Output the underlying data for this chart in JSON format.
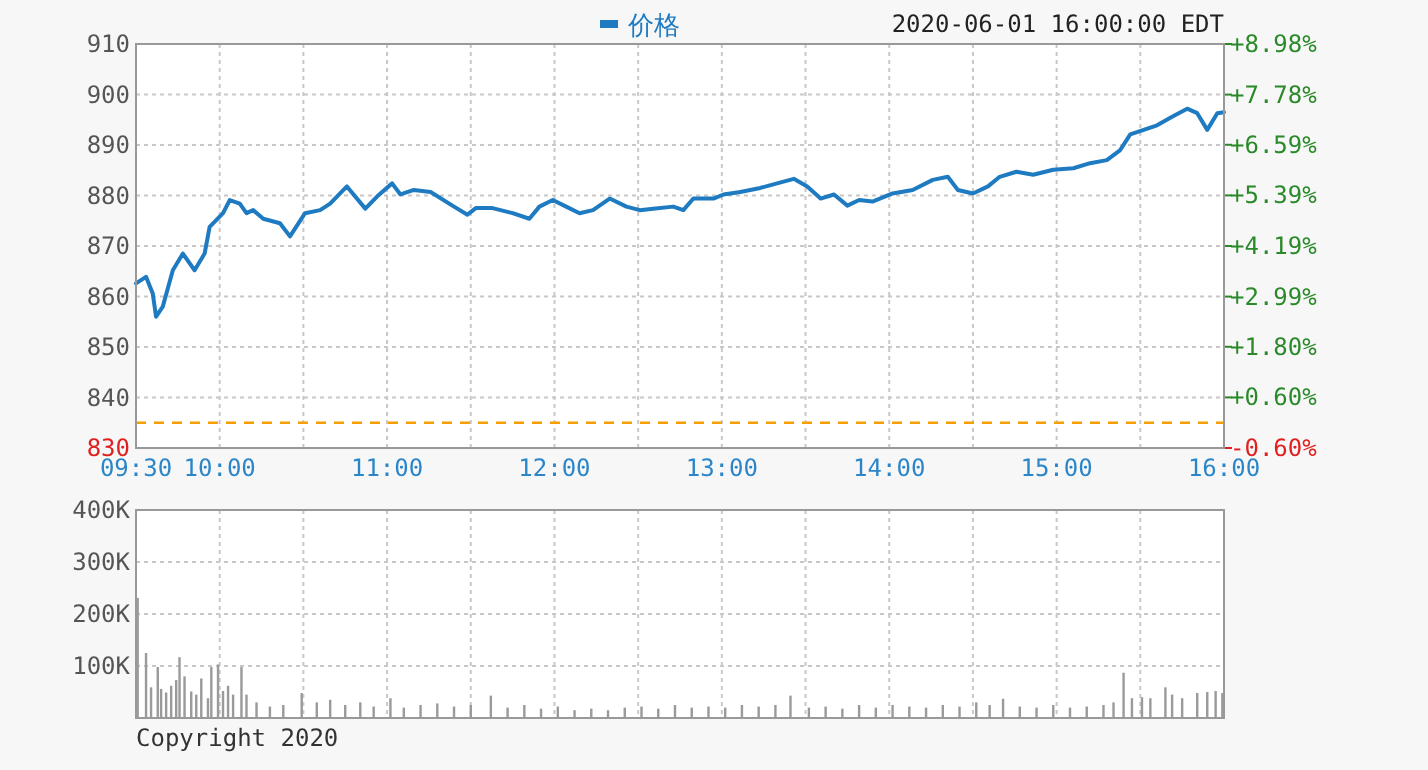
{
  "chart_data": [
    {
      "type": "line",
      "subtitle": "2020-06-01 16:00:00 EDT",
      "legend": "top",
      "grid": true,
      "xlim": [
        9.5,
        16
      ],
      "xticks": [
        {
          "value": 9.5,
          "label": "09:30"
        },
        {
          "value": 10,
          "label": "10:00"
        },
        {
          "value": 10.5,
          "label": null
        },
        {
          "value": 11,
          "label": "11:00"
        },
        {
          "value": 11.5,
          "label": null
        },
        {
          "value": 12,
          "label": "12:00"
        },
        {
          "value": 12.5,
          "label": null
        },
        {
          "value": 13,
          "label": "13:00"
        },
        {
          "value": 13.5,
          "label": null
        },
        {
          "value": 14,
          "label": "14:00"
        },
        {
          "value": 14.5,
          "label": null
        },
        {
          "value": 15,
          "label": "15:00"
        },
        {
          "value": 15.5,
          "label": null
        },
        {
          "value": 16,
          "label": "16:00"
        }
      ],
      "ylim": [
        830,
        910
      ],
      "yticks": [
        830,
        840,
        850,
        860,
        870,
        880,
        890,
        900,
        910
      ],
      "y2lim": [
        -0.6,
        8.98
      ],
      "y2ticks": [
        {
          "value": -0.6,
          "label": "-0.60%"
        },
        {
          "value": 0.6,
          "label": "+0.60%"
        },
        {
          "value": 1.8,
          "label": "+1.80%"
        },
        {
          "value": 2.99,
          "label": "+2.99%"
        },
        {
          "value": 4.19,
          "label": "+4.19%"
        },
        {
          "value": 5.39,
          "label": "+5.39%"
        },
        {
          "value": 6.59,
          "label": "+6.59%"
        },
        {
          "value": 7.78,
          "label": "+7.78%"
        },
        {
          "value": 8.98,
          "label": "+8.98%"
        }
      ],
      "ref_lines": [
        {
          "axis": "y",
          "value": 835,
          "label": null,
          "color": "#f5a000",
          "line_style": "dashed"
        }
      ],
      "series": [
        {
          "name": "价格",
          "color": "#1f7bc1",
          "x": [
            9.5,
            9.56,
            9.6,
            9.62,
            9.66,
            9.72,
            9.78,
            9.85,
            9.91,
            9.94,
            10.02,
            10.06,
            10.12,
            10.16,
            10.2,
            10.26,
            10.36,
            10.42,
            10.51,
            10.6,
            10.66,
            10.76,
            10.87,
            10.94,
            11.03,
            11.08,
            11.16,
            11.26,
            11.4,
            11.48,
            11.53,
            11.63,
            11.75,
            11.85,
            11.91,
            11.99,
            12.07,
            12.15,
            12.23,
            12.33,
            12.43,
            12.51,
            12.59,
            12.71,
            12.77,
            12.83,
            12.95,
            13.01,
            13.11,
            13.23,
            13.33,
            13.43,
            13.51,
            13.59,
            13.67,
            13.75,
            13.82,
            13.9,
            14.02,
            14.14,
            14.26,
            14.35,
            14.41,
            14.5,
            14.59,
            14.66,
            14.76,
            14.86,
            14.98,
            15.1,
            15.2,
            15.3,
            15.38,
            15.44,
            15.52,
            15.6,
            15.69,
            15.78,
            15.84,
            15.9,
            15.96,
            16.0
          ],
          "values": [
            862.6,
            863.9,
            860.6,
            856.0,
            858.0,
            865.2,
            868.5,
            865.2,
            868.5,
            873.8,
            876.5,
            879.1,
            878.4,
            876.5,
            877.1,
            875.4,
            874.5,
            871.9,
            876.5,
            877.1,
            878.4,
            881.8,
            877.4,
            879.8,
            882.4,
            880.2,
            881.1,
            880.7,
            877.8,
            876.2,
            877.5,
            877.5,
            876.5,
            875.4,
            877.8,
            879.1,
            877.8,
            876.5,
            877.1,
            879.4,
            877.8,
            877.1,
            877.4,
            877.8,
            877.1,
            879.4,
            879.4,
            880.2,
            880.7,
            881.5,
            882.4,
            883.3,
            881.8,
            879.4,
            880.2,
            878.0,
            879.1,
            878.8,
            880.4,
            881.1,
            883.1,
            883.7,
            881.1,
            880.4,
            881.8,
            883.7,
            884.7,
            884.1,
            885.1,
            885.4,
            886.4,
            887.0,
            889.0,
            892.1,
            893.0,
            893.9,
            895.6,
            897.2,
            896.3,
            893.0,
            896.3,
            896.5
          ]
        }
      ]
    },
    {
      "type": "bar",
      "grid": true,
      "tick_labels": "y",
      "annotations": [
        "Copyright 2020"
      ],
      "xlim": [
        9.5,
        16
      ],
      "xticks": [
        {
          "value": 9.5,
          "label": null
        },
        {
          "value": 10,
          "label": null
        },
        {
          "value": 10.5,
          "label": null
        },
        {
          "value": 11,
          "label": null
        },
        {
          "value": 11.5,
          "label": null
        },
        {
          "value": 12,
          "label": null
        },
        {
          "value": 12.5,
          "label": null
        },
        {
          "value": 13,
          "label": null
        },
        {
          "value": 13.5,
          "label": null
        },
        {
          "value": 14,
          "label": null
        },
        {
          "value": 14.5,
          "label": null
        },
        {
          "value": 15,
          "label": null
        },
        {
          "value": 15.5,
          "label": null
        },
        {
          "value": 16,
          "label": null
        }
      ],
      "ylim": [
        0,
        400000
      ],
      "yticks": [
        {
          "value": 100000,
          "label": "100K"
        },
        {
          "value": 200000,
          "label": "200K"
        },
        {
          "value": 300000,
          "label": "300K"
        },
        {
          "value": 400000,
          "label": "400K"
        }
      ],
      "series": [
        {
          "color": "#9a9a9a",
          "x": [
            9.51,
            9.56,
            9.59,
            9.63,
            9.65,
            9.68,
            9.71,
            9.74,
            9.76,
            9.79,
            9.83,
            9.86,
            9.89,
            9.93,
            9.95,
            9.99,
            10.02,
            10.05,
            10.08,
            10.13,
            10.16,
            10.22,
            10.3,
            10.38,
            10.49,
            10.58,
            10.66,
            10.75,
            10.84,
            10.92,
            11.02,
            11.1,
            11.2,
            11.3,
            11.4,
            11.5,
            11.62,
            11.72,
            11.82,
            11.92,
            12.02,
            12.12,
            12.22,
            12.32,
            12.42,
            12.52,
            12.62,
            12.72,
            12.82,
            12.92,
            13.02,
            13.12,
            13.22,
            13.32,
            13.41,
            13.52,
            13.62,
            13.72,
            13.82,
            13.92,
            14.02,
            14.12,
            14.22,
            14.32,
            14.42,
            14.52,
            14.6,
            14.68,
            14.78,
            14.88,
            14.98,
            15.08,
            15.18,
            15.28,
            15.34,
            15.4,
            15.45,
            15.51,
            15.56,
            15.65,
            15.69,
            15.75,
            15.84,
            15.9,
            15.95,
            15.99
          ],
          "values": [
            231000,
            125000,
            59000,
            98000,
            56000,
            49000,
            62000,
            73000,
            117000,
            80000,
            51000,
            45000,
            76000,
            38000,
            98000,
            103000,
            52000,
            62000,
            45000,
            98000,
            45000,
            30000,
            22000,
            25000,
            48000,
            30000,
            35000,
            25000,
            30000,
            22000,
            38000,
            20000,
            25000,
            28000,
            22000,
            25000,
            43000,
            20000,
            25000,
            18000,
            22000,
            15000,
            18000,
            15000,
            20000,
            22000,
            18000,
            25000,
            20000,
            22000,
            20000,
            25000,
            22000,
            25000,
            43000,
            20000,
            22000,
            18000,
            25000,
            20000,
            25000,
            22000,
            20000,
            25000,
            22000,
            30000,
            25000,
            37000,
            22000,
            20000,
            25000,
            20000,
            22000,
            25000,
            30000,
            87000,
            38000,
            40000,
            38000,
            59000,
            45000,
            38000,
            48000,
            50000,
            52000,
            48000
          ]
        }
      ]
    }
  ]
}
